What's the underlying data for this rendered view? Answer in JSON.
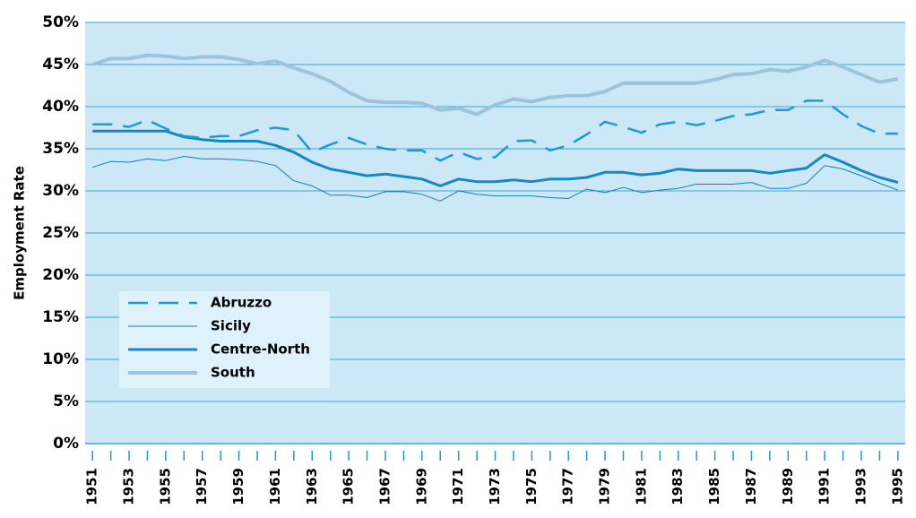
{
  "chart_data": {
    "type": "line",
    "ylabel": "Employment Rate",
    "x": [
      1951,
      1952,
      1953,
      1954,
      1955,
      1956,
      1957,
      1958,
      1959,
      1960,
      1961,
      1962,
      1963,
      1964,
      1965,
      1966,
      1967,
      1968,
      1969,
      1970,
      1971,
      1972,
      1973,
      1974,
      1975,
      1976,
      1977,
      1978,
      1979,
      1980,
      1981,
      1982,
      1983,
      1984,
      1985,
      1986,
      1987,
      1988,
      1989,
      1990,
      1991,
      1992,
      1993,
      1994,
      1995
    ],
    "xlim": [
      1950.6,
      1995.4
    ],
    "xticks": [
      1951,
      1953,
      1955,
      1957,
      1959,
      1961,
      1963,
      1965,
      1967,
      1969,
      1971,
      1973,
      1975,
      1977,
      1979,
      1981,
      1983,
      1985,
      1987,
      1989,
      1991,
      1993,
      1995
    ],
    "ylim": [
      0,
      50
    ],
    "yticks": [
      {
        "value": 0,
        "label": "0%"
      },
      {
        "value": 5,
        "label": "5%"
      },
      {
        "value": 10,
        "label": "10%"
      },
      {
        "value": 15,
        "label": "15%"
      },
      {
        "value": 20,
        "label": "20%"
      },
      {
        "value": 25,
        "label": "25%"
      },
      {
        "value": 30,
        "label": "30%"
      },
      {
        "value": 35,
        "label": "35%"
      },
      {
        "value": 40,
        "label": "40%"
      },
      {
        "value": 45,
        "label": "45%"
      },
      {
        "value": 50,
        "label": "50%"
      }
    ],
    "grid": true,
    "legend": "lower-left",
    "series": [
      {
        "name": "Abruzzo",
        "color": "#1a9ad6",
        "dash": true,
        "width": 2.5,
        "values": [
          37.9,
          37.9,
          37.6,
          38.4,
          37.4,
          36.5,
          36.3,
          36.5,
          36.5,
          37.2,
          37.5,
          37.2,
          34.6,
          35.5,
          36.3,
          35.5,
          35.0,
          34.8,
          34.8,
          33.6,
          34.6,
          33.8,
          34.0,
          35.9,
          36.0,
          34.8,
          35.4,
          36.7,
          38.2,
          37.6,
          36.9,
          37.9,
          38.2,
          37.8,
          38.3,
          38.9,
          39.1,
          39.6,
          39.6,
          40.7,
          40.7,
          39.1,
          37.7,
          36.8,
          36.8
        ]
      },
      {
        "name": "Sicily",
        "color": "#0f7fb5",
        "dash": false,
        "width": 1,
        "values": [
          32.8,
          33.5,
          33.4,
          33.8,
          33.6,
          34.1,
          33.8,
          33.8,
          33.7,
          33.5,
          33.0,
          31.2,
          30.6,
          29.5,
          29.5,
          29.2,
          29.9,
          29.9,
          29.6,
          28.8,
          30.0,
          29.6,
          29.4,
          29.4,
          29.4,
          29.2,
          29.1,
          30.2,
          29.8,
          30.4,
          29.8,
          30.1,
          30.3,
          30.8,
          30.8,
          30.8,
          31.0,
          30.3,
          30.3,
          30.9,
          33.0,
          32.6,
          31.8,
          30.9,
          30.1
        ]
      },
      {
        "name": "Centre-North",
        "color": "#1687c4",
        "dash": false,
        "width": 3,
        "values": [
          37.1,
          37.1,
          37.1,
          37.1,
          37.1,
          36.4,
          36.1,
          35.9,
          35.9,
          35.9,
          35.4,
          34.6,
          33.4,
          32.6,
          32.2,
          31.8,
          32.0,
          31.7,
          31.4,
          30.6,
          31.4,
          31.1,
          31.1,
          31.3,
          31.1,
          31.4,
          31.4,
          31.6,
          32.2,
          32.2,
          31.9,
          32.1,
          32.6,
          32.4,
          32.4,
          32.4,
          32.4,
          32.1,
          32.4,
          32.7,
          34.3,
          33.4,
          32.4,
          31.6,
          31.0
        ]
      },
      {
        "name": "South",
        "color": "#9ec3dc",
        "dash": false,
        "width": 4,
        "values": [
          45.0,
          45.7,
          45.7,
          46.1,
          46.0,
          45.7,
          45.9,
          45.9,
          45.6,
          45.1,
          45.4,
          44.6,
          43.9,
          43.0,
          41.7,
          40.7,
          40.5,
          40.5,
          40.4,
          39.6,
          39.8,
          39.1,
          40.2,
          40.9,
          40.6,
          41.1,
          41.3,
          41.3,
          41.8,
          42.8,
          42.8,
          42.8,
          42.8,
          42.8,
          43.2,
          43.8,
          43.9,
          44.4,
          44.2,
          44.7,
          45.5,
          44.7,
          43.8,
          42.9,
          43.3
        ]
      }
    ]
  }
}
